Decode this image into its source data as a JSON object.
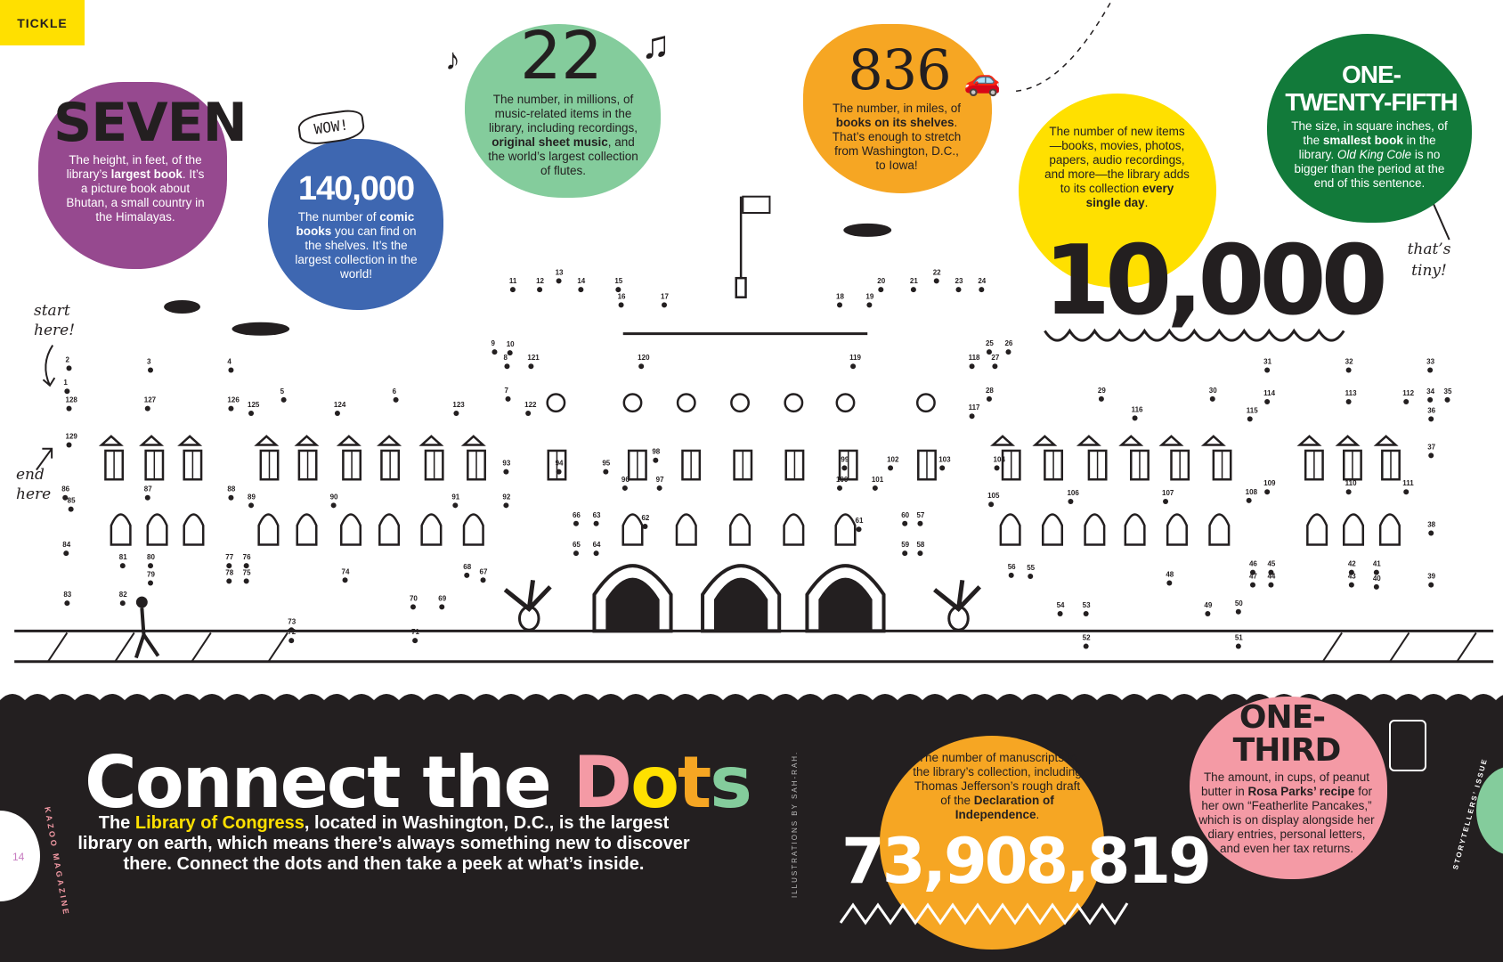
{
  "section_tag": "TICKLE",
  "colors": {
    "yellow": "#FFE000",
    "purple": "#96498F",
    "blue": "#3E67B1",
    "green_light": "#84CC9C",
    "orange": "#F6A623",
    "green_dark": "#127A3A",
    "pink": "#F49AA5",
    "black": "#231f20"
  },
  "facts": {
    "seven": {
      "headline": "SEVEN",
      "text_1": "The height, in feet, of the library’s ",
      "bold": "largest book",
      "text_2": ". It’s a picture book about Bhutan, a small country in the Himalayas."
    },
    "comics": {
      "badge": "WOW!",
      "headline": "140,000",
      "text_1": "The number of ",
      "bold": "comic books",
      "text_2": " you can find on the shelves. It’s the largest collection in the world!"
    },
    "music": {
      "headline": "22",
      "text_1": "The number, in millions, of music-related items in the library, including recordings, ",
      "bold": "original sheet music",
      "text_2": ", and the world’s largest collection of flutes."
    },
    "miles": {
      "headline": "836",
      "text_1": "The number, in miles, of ",
      "bold": "books on its shelves",
      "text_2": ". That’s enough to stretch from Washington, D.C., to Iowa!"
    },
    "daily": {
      "headline": "10,000",
      "text_1": "The number of new items—books, movies, photos, papers, audio recordings, and more—the library adds to its collection ",
      "bold": "every single day",
      "text_2": "."
    },
    "smallest": {
      "headline_1": "ONE-",
      "headline_2": "TWENTY-FIFTH",
      "text_1": "The size, in square inches, of the ",
      "bold": "smallest book",
      "text_2": " in the library. ",
      "italic": "Old King Cole",
      "text_3": " is no bigger than the period at the end of this sentence.",
      "note": "that’s tiny!"
    },
    "manuscripts": {
      "headline": "73,908,819",
      "text_1": "The number of manuscripts in the library’s collection, including Thomas Jefferson’s rough draft of the ",
      "bold": "Declaration of Independence",
      "text_2": "."
    },
    "peanut": {
      "headline_1": "ONE-",
      "headline_2": "THIRD",
      "text_1": "The amount, in cups, of peanut butter in ",
      "bold": "Rosa Parks’ recipe",
      "text_2": " for her own “Featherlite Pancakes,” which is on display alongside her diary entries, personal letters, and even her tax returns."
    }
  },
  "puzzle": {
    "start_note": "start here!",
    "end_note": "end here",
    "dot_labels": [
      1,
      2,
      3,
      4,
      5,
      6,
      7,
      8,
      9,
      10,
      11,
      12,
      13,
      14,
      15,
      16,
      17,
      18,
      19,
      20,
      21,
      22,
      23,
      24,
      25,
      26,
      27,
      28,
      29,
      30,
      31,
      32,
      33,
      34,
      35,
      36,
      37,
      38,
      39,
      40,
      41,
      42,
      43,
      44,
      45,
      46,
      47,
      48,
      49,
      50,
      51,
      52,
      53,
      54,
      55,
      56,
      57,
      58,
      59,
      60,
      61,
      62,
      63,
      64,
      65,
      66,
      67,
      68,
      69,
      70,
      71,
      72,
      73,
      74,
      75,
      76,
      77,
      78,
      79,
      80,
      81,
      82,
      83,
      84,
      85,
      86,
      87,
      88,
      89,
      90,
      91,
      92,
      93,
      94,
      95,
      96,
      97,
      98,
      99,
      100,
      101,
      102,
      103,
      104,
      105,
      106,
      107,
      108,
      109,
      110,
      111,
      112,
      113,
      114,
      115,
      116,
      117,
      118,
      119,
      120,
      121,
      122,
      123,
      124,
      125,
      126,
      127,
      128,
      129
    ]
  },
  "footer": {
    "title_1": "Connect the ",
    "title_letters": [
      {
        "ch": "D",
        "color": "#F49AA5"
      },
      {
        "ch": "o",
        "color": "#FFE000"
      },
      {
        "ch": "t",
        "color": "#F6A623"
      },
      {
        "ch": "s",
        "color": "#84CC9C"
      }
    ],
    "intro_1": "The ",
    "intro_link": "Library of Congress",
    "intro_2": ", located in Washington, D.C., is the largest library on earth, which means there’s always something new to discover there. Connect the dots and then take a peek at what’s inside.",
    "credit": "ILLUSTRATIONS BY SAH-RAH.",
    "page_number": "14",
    "magazine": "KAZOO MAGAZINE",
    "issue": "STORYTELLERS’ ISSUE"
  }
}
